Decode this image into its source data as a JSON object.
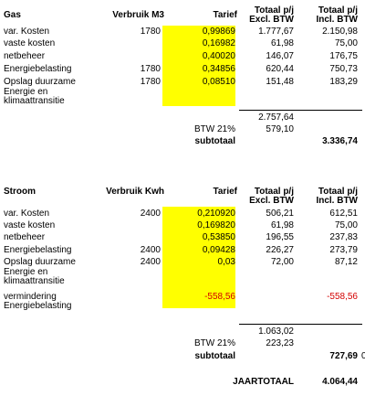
{
  "gas": {
    "headers": {
      "name": "Gas",
      "usage": "Verbruik M3",
      "rate": "Tarief",
      "excl": "Totaal p/j\nExcl. BTW",
      "incl": "Totaal p/j\nIncl. BTW"
    },
    "rows": [
      {
        "label": "var. Kosten",
        "usage": "1780",
        "rate": "0,99869",
        "excl": "1.777,67",
        "incl": "2.150,98"
      },
      {
        "label": "vaste kosten",
        "usage": "",
        "rate": "0,16982",
        "excl": "61,98",
        "incl": "75,00"
      },
      {
        "label": "netbeheer",
        "usage": "",
        "rate": "0,40020",
        "excl": "146,07",
        "incl": "176,75"
      },
      {
        "label": "Energiebelasting",
        "usage": "1780",
        "rate": "0,34856",
        "excl": "620,44",
        "incl": "750,73"
      },
      {
        "label": "Opslag duurzame",
        "usage": "1780",
        "rate": "0,08510",
        "excl": "151,48",
        "incl": "183,29"
      },
      {
        "label": "Energie en\nklimaattransitie",
        "usage": "",
        "rate": "",
        "excl": "",
        "incl": ""
      }
    ],
    "sum_excl": "2.757,64",
    "btw_label": "BTW 21%",
    "btw_value": "579,10",
    "subtotal_label": "subtotaal",
    "subtotal_value": "3.336,74"
  },
  "stroom": {
    "headers": {
      "name": "Stroom",
      "usage": "Verbruik Kwh",
      "rate": "Tarief",
      "excl": "Totaal p/j\nExcl. BTW",
      "incl": "Totaal p/j\nIncl. BTW"
    },
    "rows": [
      {
        "label": "var. Kosten",
        "usage": "2400",
        "rate": "0,210920",
        "excl": "506,21",
        "incl": "612,51"
      },
      {
        "label": "vaste kosten",
        "usage": "",
        "rate": "0,169820",
        "excl": "61,98",
        "incl": "75,00"
      },
      {
        "label": "netbeheer",
        "usage": "",
        "rate": "0,53850",
        "excl": "196,55",
        "incl": "237,83"
      },
      {
        "label": "Energiebelasting",
        "usage": "2400",
        "rate": "0,09428",
        "excl": "226,27",
        "incl": "273,79"
      },
      {
        "label": "Opslag duurzame",
        "usage": "2400",
        "rate": "0,03",
        "excl": "72,00",
        "incl": "87,12"
      },
      {
        "label": "Energie en\nklimaattransitie",
        "usage": "",
        "rate": "",
        "excl": "",
        "incl": ""
      },
      {
        "label": "vermindering\nEnergiebelasting",
        "usage": "",
        "rate": "-558,56",
        "excl": "",
        "incl": "-558,56"
      }
    ],
    "sum_excl": "1.063,02",
    "btw_label": "BTW 21%",
    "btw_value": "223,23",
    "subtotal_label": "subtotaal",
    "subtotal_value": "727,69",
    "subtotal_trailing": "0"
  },
  "year_total_label": "JAARTOTAAL",
  "year_total_value": "4.064,44",
  "colors": {
    "highlight": "#ffff00",
    "negative": "#d40000"
  }
}
